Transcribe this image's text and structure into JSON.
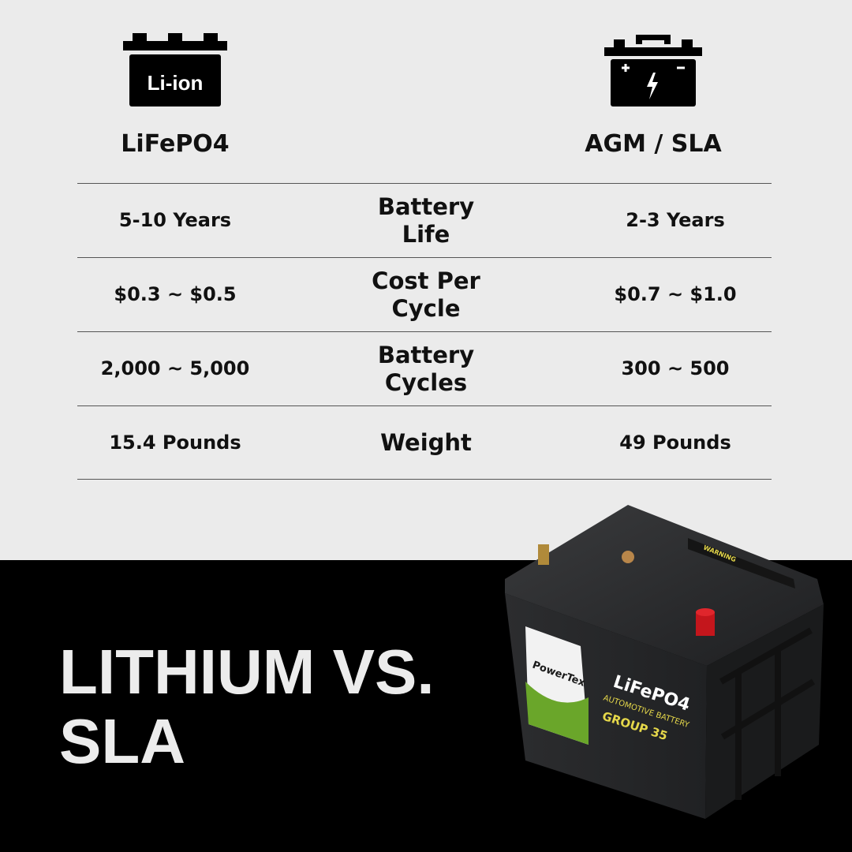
{
  "columns": {
    "left": {
      "label": "LiFePO4",
      "icon": "li-ion-battery-icon",
      "icon_text": "Li-ion"
    },
    "right": {
      "label": "AGM / SLA",
      "icon": "lead-acid-battery-icon"
    }
  },
  "rows": [
    {
      "left": "5-10 Years",
      "metric": "Battery Life",
      "right": "2-3 Years"
    },
    {
      "left": "$0.3 ~ $0.5",
      "metric": "Cost Per Cycle",
      "right": "$0.7 ~ $1.0"
    },
    {
      "left": "2,000 ~ 5,000",
      "metric": "Battery Cycles",
      "right": "300 ~ 500"
    },
    {
      "left": "15.4 Pounds",
      "metric": "Weight",
      "right": "49 Pounds"
    }
  ],
  "title": {
    "line1": "LITHIUM VS.",
    "line2": "SLA"
  },
  "product": {
    "brand": "PowerTex",
    "chem": "LiFePO4",
    "type": "AUTOMOTIVE BATTERY",
    "group": "GROUP 35",
    "warning": "WARNING"
  },
  "colors": {
    "background": "#ebebeb",
    "footer": "#000000",
    "label_accent": "#e6d84a"
  }
}
